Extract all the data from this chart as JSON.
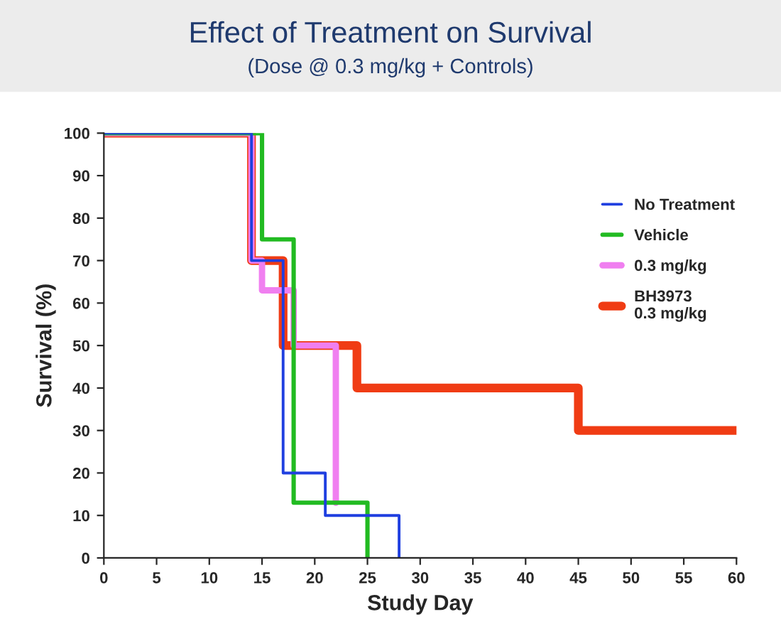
{
  "chart_data": {
    "type": "step",
    "title": "Effect of Treatment on Survival",
    "subtitle": "(Dose @ 0.3 mg/kg + Controls)",
    "xlabel": "Study Day",
    "ylabel": "Survival (%)",
    "xlim": [
      0,
      60
    ],
    "xticks": [
      0,
      5,
      10,
      15,
      20,
      25,
      30,
      35,
      40,
      45,
      50,
      55,
      60
    ],
    "ylim": [
      0,
      100
    ],
    "yticks": [
      0,
      10,
      20,
      30,
      40,
      50,
      60,
      70,
      80,
      90,
      100
    ],
    "grid": false,
    "legend": "top right",
    "series": [
      {
        "name": "No Treatment",
        "color": "#1f3fe0",
        "x": [
          0,
          14,
          17,
          21,
          28
        ],
        "values": [
          100,
          70,
          20,
          10,
          0
        ]
      },
      {
        "name": "Vehicle",
        "color": "#22bb22",
        "x": [
          0,
          15,
          18,
          25
        ],
        "values": [
          100,
          75,
          13,
          0
        ]
      },
      {
        "name": "0.3 mg/kg",
        "color": "#f07ff0",
        "x": [
          0,
          14,
          15,
          18,
          22
        ],
        "values": [
          100,
          70,
          63,
          50,
          13
        ]
      },
      {
        "name": "BH3973\n0.3 mg/kg",
        "color": "#f03c14",
        "x": [
          0,
          14,
          17,
          24,
          45,
          60
        ],
        "values": [
          100,
          70,
          50,
          40,
          30,
          30
        ]
      }
    ]
  }
}
